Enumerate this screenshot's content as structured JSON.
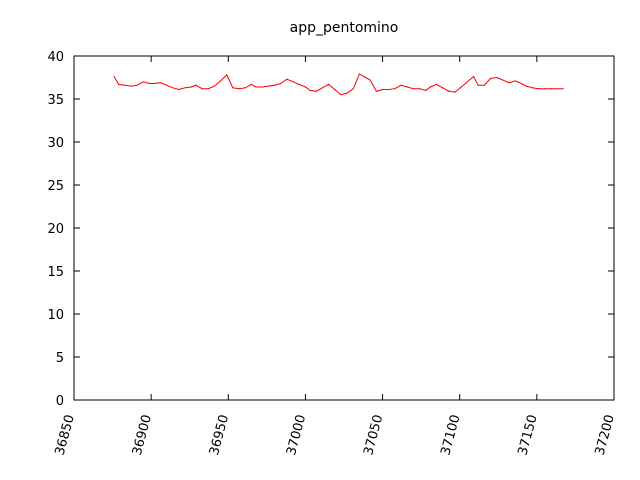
{
  "chart_data": {
    "type": "line",
    "title": "app_pentomino",
    "xlabel": "",
    "ylabel": "",
    "xlim": [
      36850,
      37200
    ],
    "ylim": [
      0,
      40
    ],
    "xticks": [
      36850,
      36900,
      36950,
      37000,
      37050,
      37100,
      37150,
      37200
    ],
    "yticks": [
      0,
      5,
      10,
      15,
      20,
      25,
      30,
      35,
      40
    ],
    "grid": false,
    "legend": "none",
    "series": [
      {
        "color": "#ff0000",
        "x": [
          36876,
          36879,
          36883,
          36887,
          36891,
          36895,
          36899,
          36902,
          36906,
          36910,
          36914,
          36918,
          36922,
          36926,
          36929,
          36933,
          36937,
          36941,
          36945,
          36949,
          36953,
          36957,
          36961,
          36965,
          36968,
          36972,
          36976,
          36980,
          36984,
          36988,
          36992,
          36996,
          37000,
          37003,
          37007,
          37011,
          37015,
          37019,
          37023,
          37027,
          37031,
          37035,
          37039,
          37042,
          37046,
          37048,
          37050,
          37054,
          37058,
          37062,
          37066,
          37070,
          37074,
          37078,
          37081,
          37085,
          37089,
          37093,
          37097,
          37101,
          37105,
          37109,
          37112,
          37116,
          37120,
          37124,
          37128,
          37132,
          37136,
          37140,
          37143,
          37147,
          37151,
          37155,
          37159,
          37163,
          37167
        ],
        "values": [
          37.6,
          36.7,
          36.6,
          36.5,
          36.6,
          37.0,
          36.8,
          36.8,
          36.9,
          36.6,
          36.3,
          36.1,
          36.3,
          36.4,
          36.6,
          36.2,
          36.2,
          36.5,
          37.1,
          37.8,
          36.3,
          36.2,
          36.3,
          36.7,
          36.4,
          36.4,
          36.5,
          36.6,
          36.8,
          37.3,
          37.0,
          36.7,
          36.4,
          36.0,
          35.9,
          36.3,
          36.7,
          36.1,
          35.5,
          35.7,
          36.2,
          37.9,
          37.5,
          37.2,
          35.9,
          36.0,
          36.1,
          36.1,
          36.2,
          36.6,
          36.4,
          36.2,
          36.2,
          36.0,
          36.4,
          36.7,
          36.3,
          35.9,
          35.8,
          36.4,
          37.0,
          37.6,
          36.6,
          36.6,
          37.4,
          37.5,
          37.2,
          36.9,
          37.1,
          36.8,
          36.5,
          36.3,
          36.2,
          36.2,
          36.2,
          36.2,
          36.2
        ]
      }
    ]
  }
}
